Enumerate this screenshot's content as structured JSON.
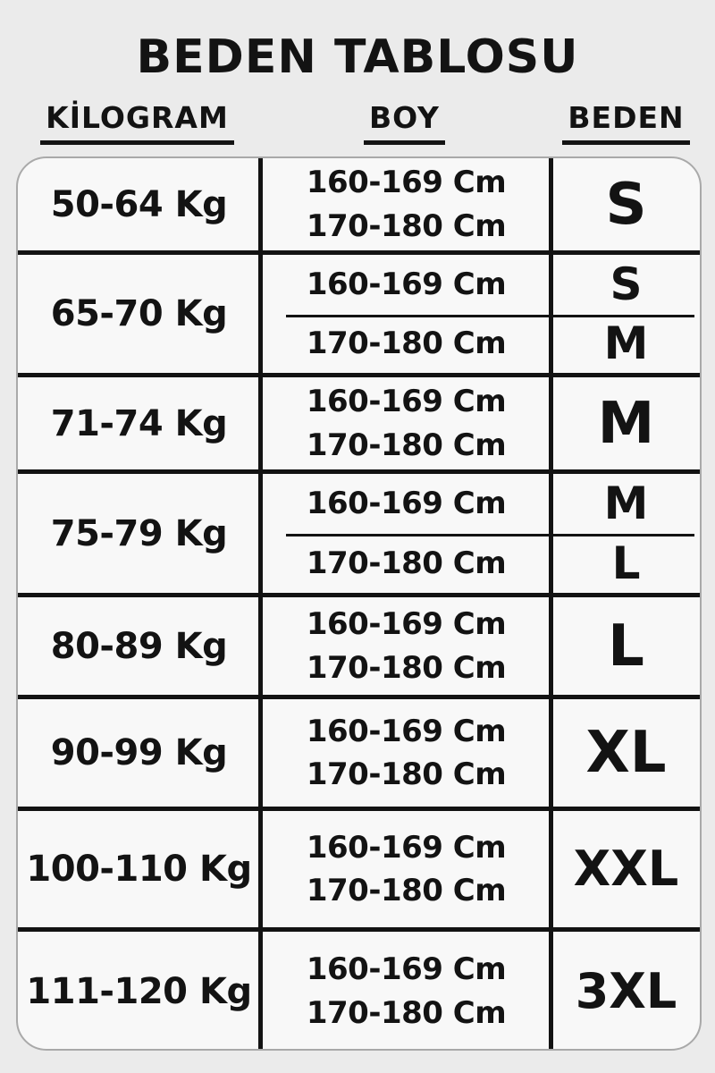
{
  "page": {
    "title": "BEDEN TABLOSU"
  },
  "colors": {
    "page_bg": "#ebebeb",
    "table_bg": "#f8f8f8",
    "line_color": "#131313",
    "text_color": "#131313",
    "outline_color": "#a9a9a9"
  },
  "columns": [
    {
      "key": "kilogram",
      "label": "KİLOGRAM"
    },
    {
      "key": "boy",
      "label": "BOY"
    },
    {
      "key": "beden",
      "label": "BEDEN"
    }
  ],
  "rows": [
    {
      "kg": "50-64 Kg",
      "heights": [
        "160-169 Cm",
        "170-180 Cm"
      ],
      "sizes": [
        "S"
      ],
      "split": false
    },
    {
      "kg": "65-70 Kg",
      "heights": [
        "160-169 Cm",
        "170-180 Cm"
      ],
      "sizes": [
        "S",
        "M"
      ],
      "split": true
    },
    {
      "kg": "71-74 Kg",
      "heights": [
        "160-169 Cm",
        "170-180 Cm"
      ],
      "sizes": [
        "M"
      ],
      "split": false
    },
    {
      "kg": "75-79 Kg",
      "heights": [
        "160-169 Cm",
        "170-180 Cm"
      ],
      "sizes": [
        "M",
        "L"
      ],
      "split": true
    },
    {
      "kg": "80-89 Kg",
      "heights": [
        "160-169 Cm",
        "170-180 Cm"
      ],
      "sizes": [
        "L"
      ],
      "split": false
    },
    {
      "kg": "90-99 Kg",
      "heights": [
        "160-169 Cm",
        "170-180 Cm"
      ],
      "sizes": [
        "XL"
      ],
      "split": false
    },
    {
      "kg": "100-110 Kg",
      "heights": [
        "160-169 Cm",
        "170-180 Cm"
      ],
      "sizes": [
        "XXL"
      ],
      "split": false
    },
    {
      "kg": "111-120 Kg",
      "heights": [
        "160-169 Cm",
        "170-180 Cm"
      ],
      "sizes": [
        "3XL"
      ],
      "split": false
    }
  ]
}
